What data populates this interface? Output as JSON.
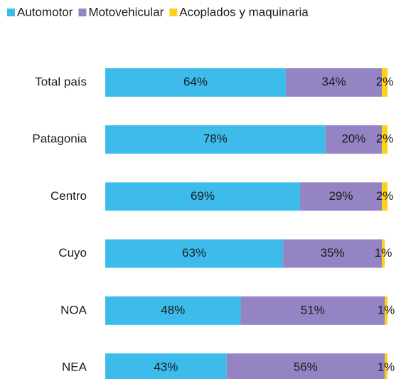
{
  "chart_data": {
    "type": "stacked-bar-horizontal",
    "categories": [
      "Total país",
      "Patagonia",
      "Centro",
      "Cuyo",
      "NOA",
      "NEA"
    ],
    "series": [
      {
        "name": "Automotor",
        "color": "#3dbcec",
        "values": [
          64,
          78,
          69,
          63,
          48,
          43
        ],
        "value_labels": [
          "64%",
          "78%",
          "69%",
          "63%",
          "48%",
          "43%"
        ]
      },
      {
        "name": "Motovehicular",
        "color": "#9484c3",
        "values": [
          34,
          20,
          29,
          35,
          51,
          56
        ],
        "value_labels": [
          "34%",
          "20%",
          "29%",
          "35%",
          "51%",
          "56%"
        ]
      },
      {
        "name": "Acoplados y maquinaria",
        "color": "#fcd116",
        "values": [
          2,
          2,
          2,
          1,
          1,
          1
        ],
        "value_labels": [
          "2%",
          "2%",
          "2%",
          "1%",
          "1%",
          "1%"
        ]
      }
    ],
    "xlim": [
      0,
      100
    ],
    "legend": "top"
  }
}
